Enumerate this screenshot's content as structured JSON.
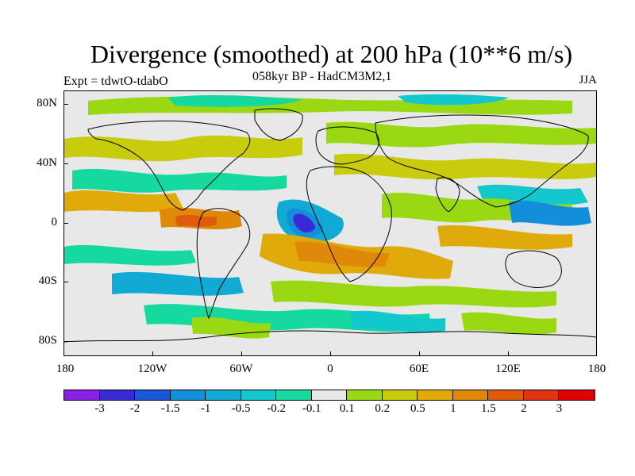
{
  "header": {
    "title": "Divergence (smoothed) at 200 hPa (10**6 m/s)",
    "experiment": "Expt = tdwtO-tdabO",
    "model": "058kyr BP - HadCM3M2,1",
    "season": "JJA"
  },
  "map": {
    "lat_labels": [
      "80N",
      "40N",
      "0",
      "40S",
      "80S"
    ],
    "lon_labels": [
      "180",
      "120W",
      "60W",
      "0",
      "60E",
      "120E",
      "180"
    ],
    "background_color": "#e8e8e8",
    "coastline_color": "#000000"
  },
  "colorbar": {
    "levels": [
      "-3",
      "-2",
      "-1.5",
      "-1",
      "-0.5",
      "-0.2",
      "-0.1",
      "0.1",
      "0.2",
      "0.5",
      "1",
      "1.5",
      "2",
      "3"
    ],
    "colors": [
      "#8a22e6",
      "#3a2ad6",
      "#1b55d8",
      "#138fd9",
      "#10aad4",
      "#12c8cc",
      "#16d9a0",
      "#e8e8e8",
      "#99d812",
      "#c8cc0d",
      "#dfaa0a",
      "#e0880a",
      "#e05a0c",
      "#e03312",
      "#e00000"
    ]
  }
}
